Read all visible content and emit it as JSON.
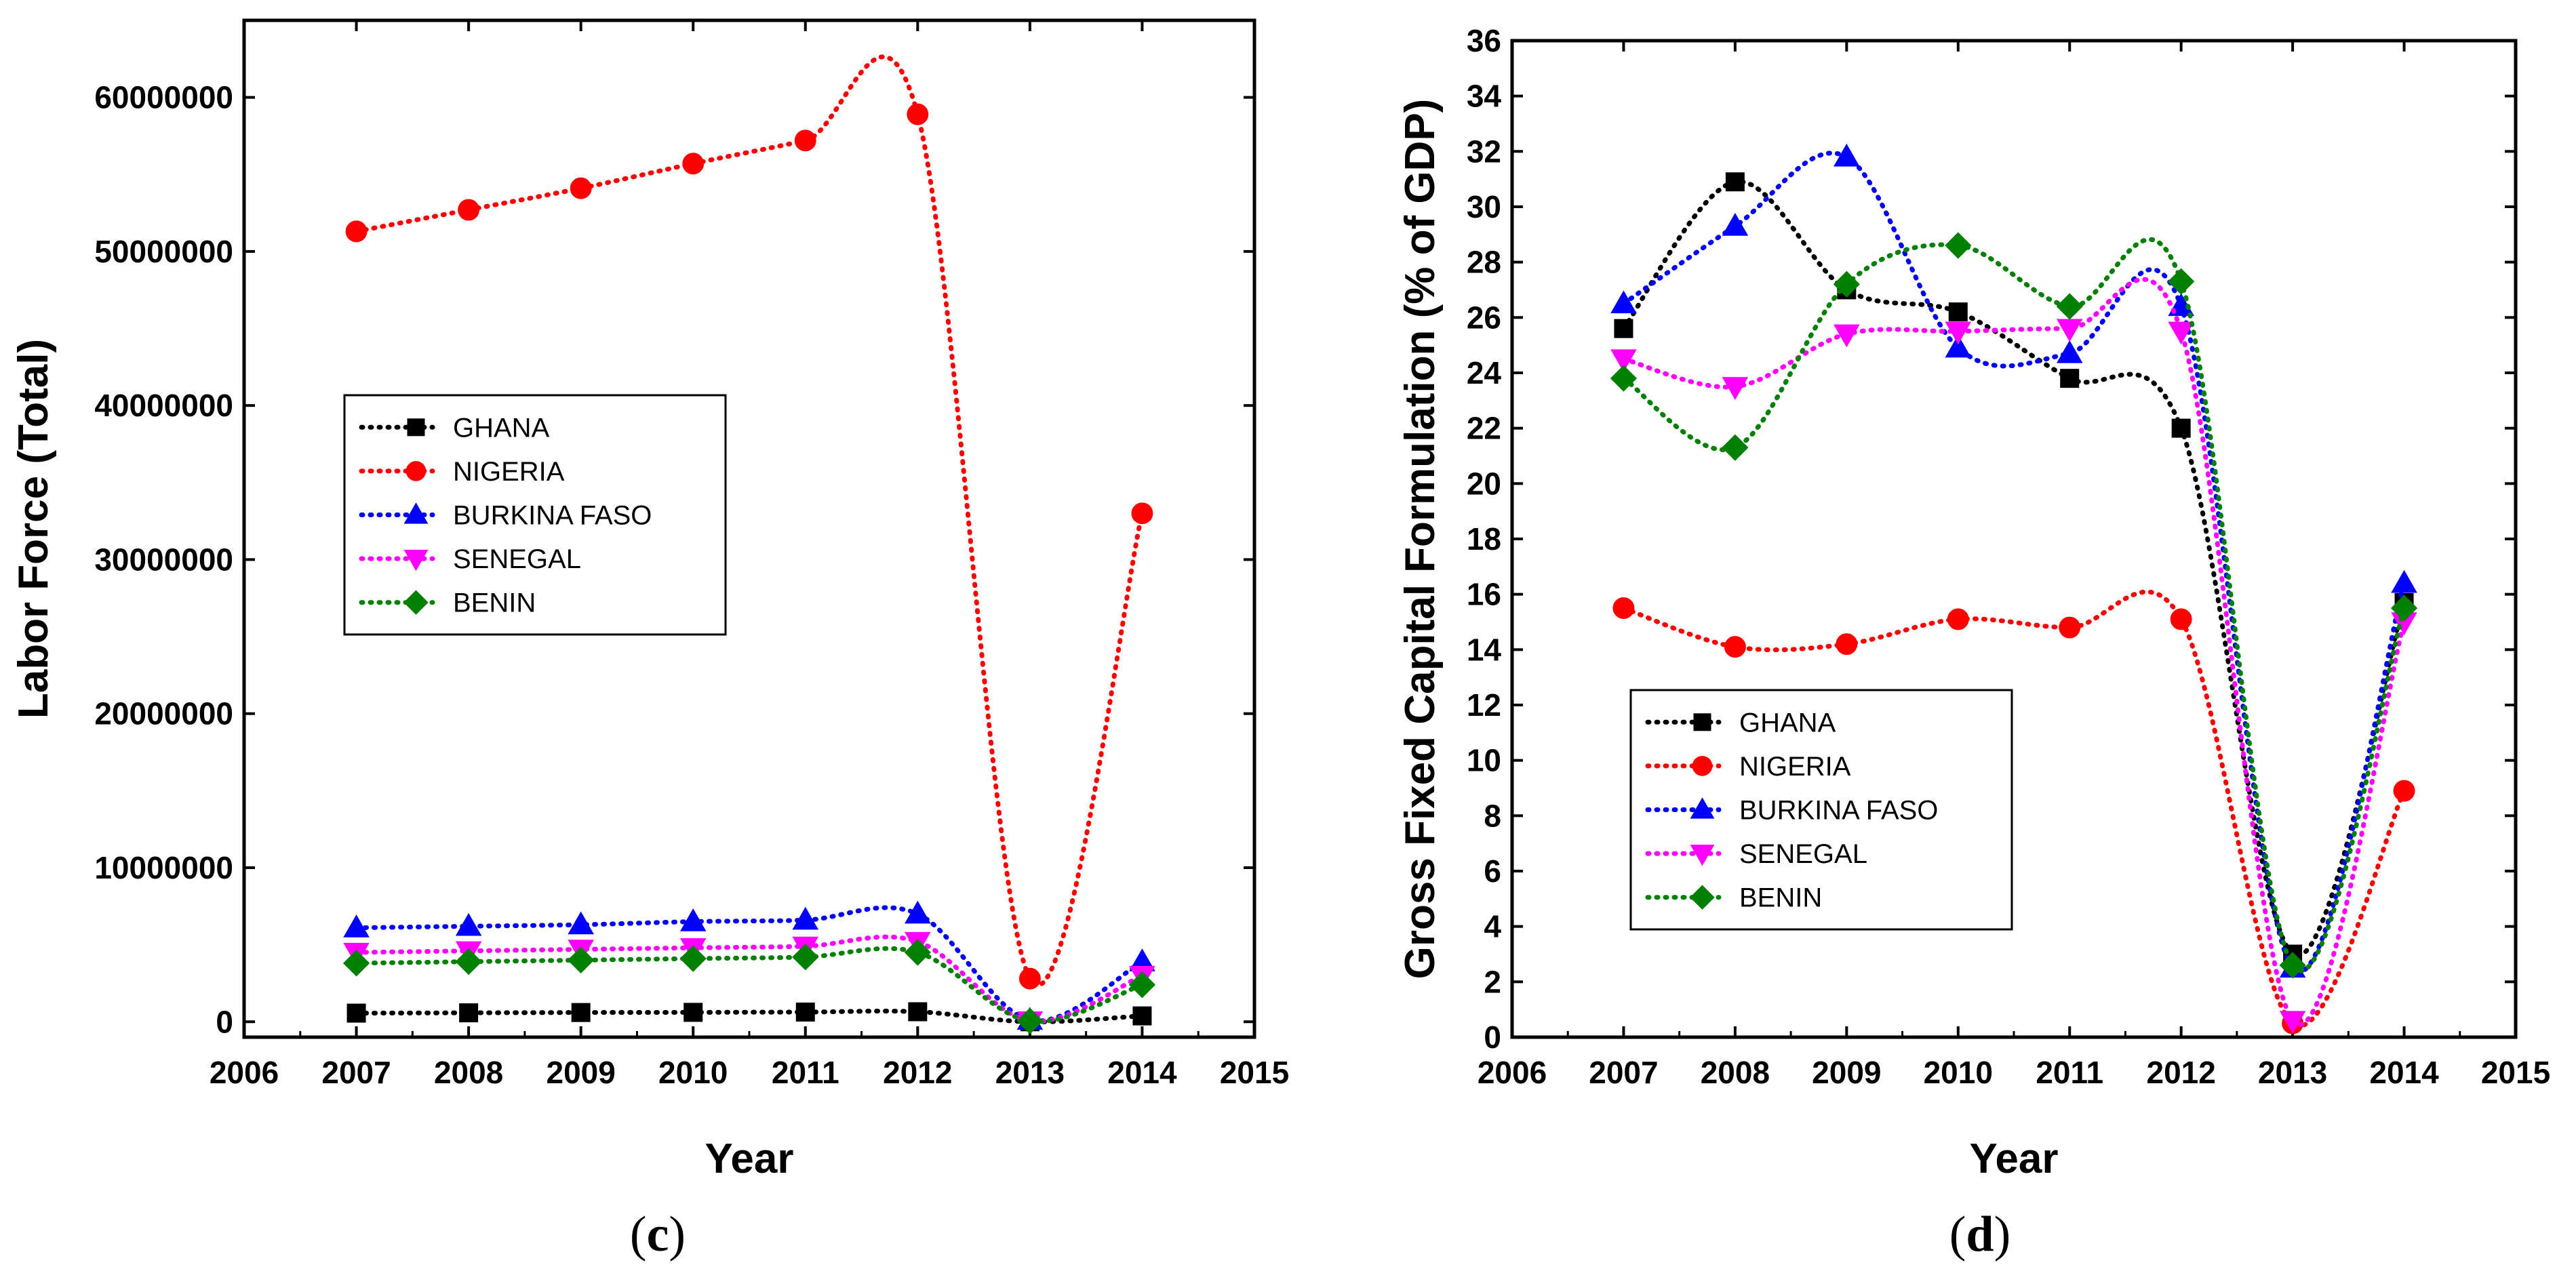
{
  "chart_data": [
    {
      "type": "line",
      "panel_label": "c",
      "title": "",
      "xlabel": "Year",
      "ylabel": "Labor Force (Total)",
      "xlim": [
        2006,
        2015
      ],
      "ylim": [
        -1000000,
        65000000
      ],
      "x_ticks": [
        2006,
        2007,
        2008,
        2009,
        2010,
        2011,
        2012,
        2013,
        2014,
        2015
      ],
      "y_ticks": [
        0,
        10000000,
        20000000,
        30000000,
        40000000,
        50000000,
        60000000
      ],
      "legend_position": "center-left",
      "x": [
        2007,
        2008,
        2009,
        2010,
        2011,
        2012,
        2013,
        2014
      ],
      "series": [
        {
          "name": "GHANA",
          "color": "#000000",
          "marker": "square",
          "values": [
            560000,
            580000,
            600000,
            610000,
            630000,
            650000,
            0,
            380000
          ]
        },
        {
          "name": "NIGERIA",
          "color": "#ff0000",
          "marker": "circle",
          "values": [
            51300000,
            52700000,
            54100000,
            55700000,
            57200000,
            58900000,
            2800000,
            33000000
          ]
        },
        {
          "name": "BURKINA FASO",
          "color": "#0000ff",
          "marker": "triangle-up",
          "values": [
            6100000,
            6200000,
            6300000,
            6500000,
            6600000,
            7000000,
            100000,
            3900000
          ]
        },
        {
          "name": "SENEGAL",
          "color": "#ff00ff",
          "marker": "triangle-down",
          "values": [
            4500000,
            4600000,
            4700000,
            4800000,
            4900000,
            5200000,
            50000,
            3000000
          ]
        },
        {
          "name": "BENIN",
          "color": "#008000",
          "marker": "diamond",
          "values": [
            3800000,
            3900000,
            4000000,
            4100000,
            4200000,
            4500000,
            50000,
            2400000
          ]
        }
      ]
    },
    {
      "type": "line",
      "panel_label": "d",
      "title": "",
      "xlabel": "Year",
      "ylabel": "Gross Fixed Capital Formulation (% of GDP)",
      "xlim": [
        2006,
        2015
      ],
      "ylim": [
        0,
        36
      ],
      "x_ticks": [
        2006,
        2007,
        2008,
        2009,
        2010,
        2011,
        2012,
        2013,
        2014,
        2015
      ],
      "y_ticks": [
        0,
        2,
        4,
        6,
        8,
        10,
        12,
        14,
        16,
        18,
        20,
        22,
        24,
        26,
        28,
        30,
        32,
        34,
        36
      ],
      "legend_position": "center-left",
      "x": [
        2007,
        2008,
        2009,
        2010,
        2011,
        2012,
        2013,
        2014
      ],
      "series": [
        {
          "name": "GHANA",
          "color": "#000000",
          "marker": "square",
          "values": [
            25.6,
            30.9,
            27.0,
            26.2,
            23.8,
            22.0,
            3.0,
            15.7
          ]
        },
        {
          "name": "NIGERIA",
          "color": "#ff0000",
          "marker": "circle",
          "values": [
            15.5,
            14.1,
            14.2,
            15.1,
            14.8,
            15.1,
            0.5,
            8.9
          ]
        },
        {
          "name": "BURKINA FASO",
          "color": "#0000ff",
          "marker": "triangle-up",
          "values": [
            26.5,
            29.3,
            31.8,
            24.9,
            24.7,
            26.4,
            2.5,
            16.4
          ]
        },
        {
          "name": "SENEGAL",
          "color": "#ff00ff",
          "marker": "triangle-down",
          "values": [
            24.5,
            23.5,
            25.4,
            25.5,
            25.6,
            25.5,
            0.6,
            15.0
          ]
        },
        {
          "name": "BENIN",
          "color": "#008000",
          "marker": "diamond",
          "values": [
            23.8,
            21.3,
            27.2,
            28.6,
            26.4,
            27.3,
            2.6,
            15.5
          ]
        }
      ]
    }
  ]
}
